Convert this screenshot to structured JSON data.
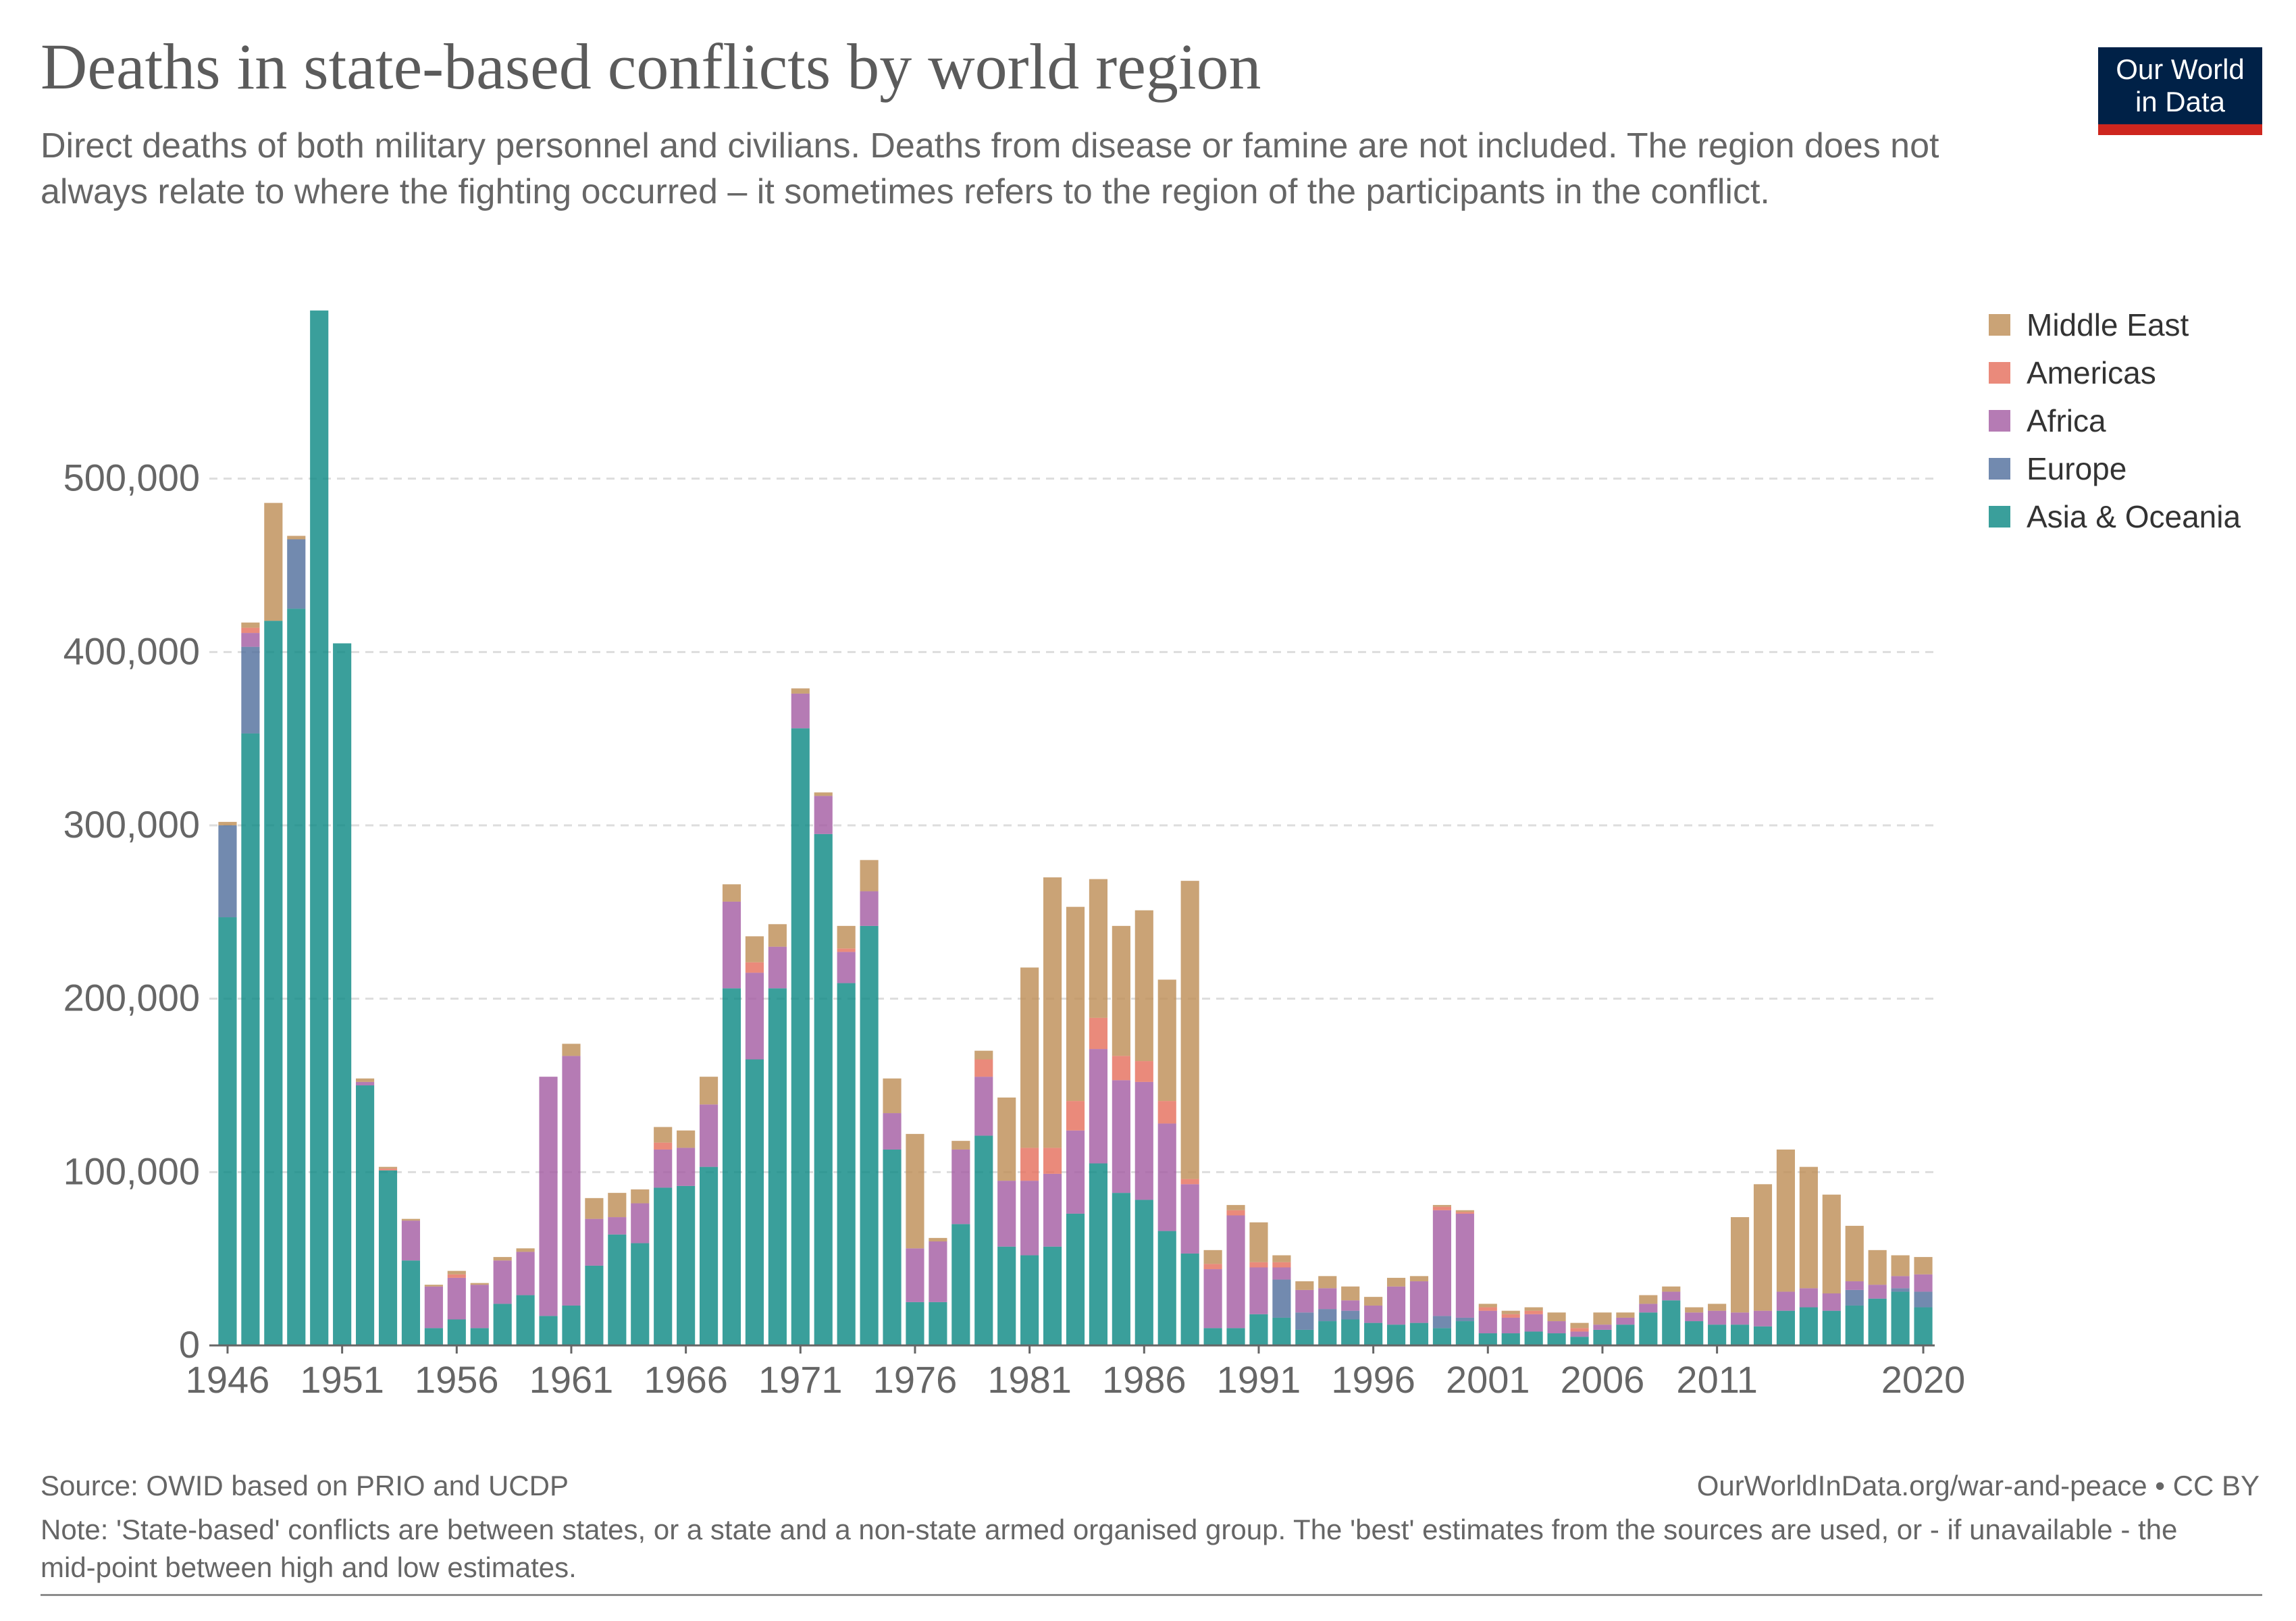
{
  "title": "Deaths in state-based conflicts by world region",
  "subtitle": "Direct deaths of both military personnel and civilians. Deaths from disease or famine are not included. The region does not always relate to where the fighting occurred – it sometimes refers to the region of the participants in the conflict.",
  "logo": {
    "line1": "Our World",
    "line2": "in Data"
  },
  "colors": {
    "Middle East": "#be8f58",
    "Americas": "#e5705e",
    "Africa": "#a55ea3",
    "Europe": "#53709e",
    "Asia & Oceania": "#0f8a85"
  },
  "legend": [
    "Middle East",
    "Americas",
    "Africa",
    "Europe",
    "Asia & Oceania"
  ],
  "footer": {
    "source": "Source: OWID based on PRIO and UCDP",
    "url": "OurWorldInData.org/war-and-peace • CC BY",
    "note": "Note: 'State-based' conflicts are between states, or a state and a non-state armed organised group. The 'best' estimates from the sources are used, or - if unavailable - the mid-point between high and low estimates."
  },
  "chart_data": {
    "type": "bar",
    "stacked": true,
    "ylim": [
      0,
      600000
    ],
    "y_ticks": [
      0,
      100000,
      200000,
      300000,
      400000,
      500000
    ],
    "y_tick_labels": [
      "0",
      "100,000",
      "200,000",
      "300,000",
      "400,000",
      "500,000"
    ],
    "x_tick_labels": [
      "1946",
      "1951",
      "1956",
      "1961",
      "1966",
      "1971",
      "1976",
      "1981",
      "1986",
      "1991",
      "1996",
      "2001",
      "2006",
      "2011",
      "2020"
    ],
    "grid": "horizontal dashed",
    "legend_position": "right",
    "categories": [
      1946,
      1947,
      1948,
      1949,
      1950,
      1951,
      1952,
      1953,
      1954,
      1955,
      1956,
      1957,
      1958,
      1959,
      1960,
      1961,
      1962,
      1963,
      1964,
      1965,
      1966,
      1967,
      1968,
      1969,
      1970,
      1971,
      1972,
      1973,
      1974,
      1975,
      1976,
      1977,
      1978,
      1979,
      1980,
      1981,
      1982,
      1983,
      1984,
      1985,
      1986,
      1987,
      1988,
      1989,
      1990,
      1991,
      1992,
      1993,
      1994,
      1995,
      1996,
      1997,
      1998,
      1999,
      2000,
      2001,
      2002,
      2003,
      2004,
      2005,
      2006,
      2007,
      2008,
      2009,
      2010,
      2011,
      2012,
      2013,
      2014,
      2015,
      2016,
      2017,
      2018,
      2019,
      2020
    ],
    "series": [
      {
        "name": "Asia & Oceania",
        "values": [
          247000,
          353000,
          418000,
          425000,
          597000,
          405000,
          150000,
          101000,
          49000,
          10000,
          15000,
          10000,
          24000,
          29000,
          17000,
          23000,
          46000,
          64000,
          59000,
          91000,
          92000,
          103000,
          206000,
          165000,
          206000,
          356000,
          295000,
          209000,
          242000,
          113000,
          25000,
          25000,
          70000,
          121000,
          57000,
          52000,
          57000,
          76000,
          105000,
          88000,
          84000,
          66000,
          53000,
          10000,
          10000,
          18000,
          16000,
          9000,
          14000,
          15000,
          13000,
          12000,
          13000,
          10000,
          14000,
          7000,
          7000,
          8000,
          7000,
          5000,
          9000,
          12000,
          19000,
          26000,
          14000,
          12000,
          12000,
          11000,
          20000,
          22000,
          20000,
          23000,
          27000,
          31000,
          22000
        ]
      },
      {
        "name": "Europe",
        "values": [
          53000,
          50000,
          0,
          40000,
          0,
          0,
          0,
          0,
          0,
          0,
          0,
          0,
          0,
          0,
          0,
          0,
          0,
          0,
          0,
          0,
          0,
          0,
          0,
          0,
          0,
          0,
          0,
          0,
          0,
          0,
          0,
          0,
          0,
          0,
          0,
          0,
          0,
          0,
          0,
          0,
          0,
          0,
          0,
          0,
          0,
          0,
          22000,
          10000,
          7000,
          5000,
          0,
          0,
          0,
          7000,
          2000,
          0,
          0,
          0,
          0,
          0,
          0,
          0,
          0,
          0,
          0,
          0,
          0,
          0,
          0,
          0,
          0,
          9000,
          0,
          2000,
          9000
        ]
      },
      {
        "name": "Africa",
        "values": [
          0,
          8000,
          0,
          0,
          0,
          0,
          2000,
          0,
          23000,
          24000,
          24000,
          25000,
          25000,
          25000,
          138000,
          144000,
          27000,
          10000,
          23000,
          22000,
          22000,
          36000,
          50000,
          50000,
          24000,
          20000,
          22000,
          18000,
          20000,
          21000,
          31000,
          35000,
          43000,
          34000,
          38000,
          43000,
          42000,
          48000,
          66000,
          65000,
          68000,
          62000,
          40000,
          34000,
          65000,
          27000,
          7000,
          13000,
          12000,
          6000,
          10000,
          22000,
          24000,
          61000,
          60000,
          13000,
          9000,
          10000,
          7000,
          3000,
          3000,
          4000,
          5000,
          5000,
          5000,
          8000,
          7000,
          9000,
          11000,
          11000,
          10000,
          5000,
          8000,
          7000,
          10000
        ]
      },
      {
        "name": "Americas",
        "values": [
          0,
          3000,
          0,
          0,
          0,
          0,
          0,
          1000,
          0,
          0,
          2000,
          0,
          0,
          0,
          0,
          0,
          0,
          0,
          0,
          4000,
          0,
          0,
          0,
          6000,
          0,
          0,
          0,
          2000,
          0,
          0,
          0,
          0,
          0,
          10000,
          0,
          19000,
          15000,
          17000,
          18000,
          14000,
          12000,
          13000,
          3000,
          3000,
          3000,
          3000,
          3000,
          0,
          0,
          0,
          0,
          0,
          0,
          2000,
          1000,
          2000,
          2000,
          2000,
          0,
          2000,
          0,
          0,
          0,
          0,
          0,
          0,
          0,
          0,
          0,
          0,
          0,
          0,
          0,
          0,
          0
        ]
      },
      {
        "name": "Middle East",
        "values": [
          2000,
          3000,
          68000,
          2000,
          0,
          0,
          2000,
          1000,
          1000,
          1000,
          2000,
          1000,
          2000,
          2000,
          0,
          7000,
          12000,
          14000,
          8000,
          9000,
          10000,
          16000,
          10000,
          15000,
          13000,
          3000,
          2000,
          13000,
          18000,
          20000,
          66000,
          2000,
          5000,
          5000,
          48000,
          104000,
          156000,
          112000,
          80000,
          75000,
          87000,
          70000,
          172000,
          8000,
          3000,
          23000,
          4000,
          5000,
          7000,
          8000,
          5000,
          5000,
          3000,
          1000,
          1000,
          2000,
          2000,
          2000,
          5000,
          3000,
          7000,
          3000,
          5000,
          3000,
          3000,
          4000,
          55000,
          73000,
          82000,
          70000,
          57000,
          32000,
          20000,
          12000,
          10000
        ]
      }
    ]
  }
}
